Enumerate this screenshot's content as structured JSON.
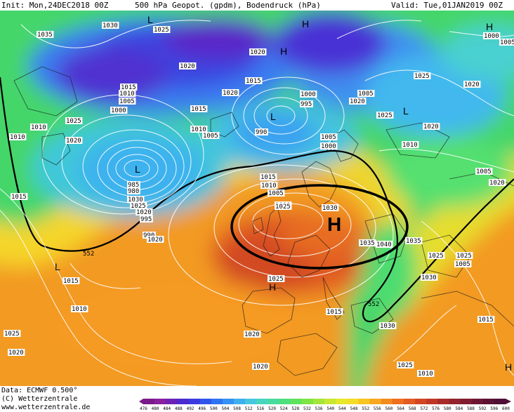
{
  "header": {
    "init": "Init: Mon,24DEC2018 00Z",
    "title": "500 hPa Geopot. (gpdm), Bodendruck (hPa)",
    "valid": "Valid: Tue,01JAN2019 00Z"
  },
  "footer": {
    "data_source": "Data: ECMWF  0.500°",
    "copyright": "(C) Wetterzentrale",
    "website": "www.wetterzentrale.de"
  },
  "colorbar": {
    "ticks": [
      "476",
      "480",
      "484",
      "488",
      "492",
      "496",
      "500",
      "504",
      "508",
      "512",
      "516",
      "520",
      "524",
      "528",
      "532",
      "536",
      "540",
      "544",
      "548",
      "552",
      "556",
      "560",
      "564",
      "568",
      "572",
      "576",
      "580",
      "584",
      "588",
      "592",
      "596",
      "600"
    ],
    "colors": [
      "#7a1a8a",
      "#8a1f9f",
      "#6b22b5",
      "#4b2ad0",
      "#3a3ae0",
      "#2f55ea",
      "#2f73f0",
      "#3592f2",
      "#3fb0ee",
      "#45c8dd",
      "#48d6c0",
      "#4adc9e",
      "#4de07c",
      "#5fe35c",
      "#80e444",
      "#a5e63a",
      "#c8e832",
      "#e6e82c",
      "#f5dc26",
      "#f8c422",
      "#f8a820",
      "#f38c1e",
      "#ee7020",
      "#e35a22",
      "#d24624",
      "#c03726",
      "#a82c2a",
      "#94232d",
      "#801c30",
      "#6d1633",
      "#5c1235",
      "#4f0f37"
    ]
  },
  "map": {
    "isobar_labels": [
      "1030",
      "1025",
      "1035",
      "1020",
      "1020",
      "1015",
      "1010",
      "1005",
      "1000",
      "1020",
      "1015",
      "1010",
      "1005",
      "1000",
      "995",
      "990",
      "985",
      "980",
      "1030",
      "1025",
      "1020",
      "1015",
      "1010",
      "1005",
      "1000",
      "995",
      "990",
      "1020",
      "1015",
      "1010",
      "1005",
      "1000",
      "1010",
      "1005",
      "1020",
      "1025",
      "1030",
      "1035",
      "1040",
      "1035",
      "1030",
      "1025",
      "1020",
      "1015",
      "1030",
      "1025",
      "1020",
      "1025",
      "1020",
      "1015",
      "1010",
      "1005",
      "1025",
      "1025",
      "1020",
      "1020",
      "1025",
      "1005",
      "1015",
      "1010",
      "1025",
      "1020",
      "1015",
      "1020",
      "1010",
      "1005",
      "1000",
      "1025",
      "1030",
      "1020"
    ],
    "height_labels": [
      "552",
      "552",
      "552"
    ],
    "pressure_centers": [
      "L",
      "L",
      "L",
      "L",
      "L",
      "H",
      "H",
      "H",
      "H",
      "H"
    ],
    "annotation": {
      "label": "H",
      "shape": "ellipse"
    }
  }
}
